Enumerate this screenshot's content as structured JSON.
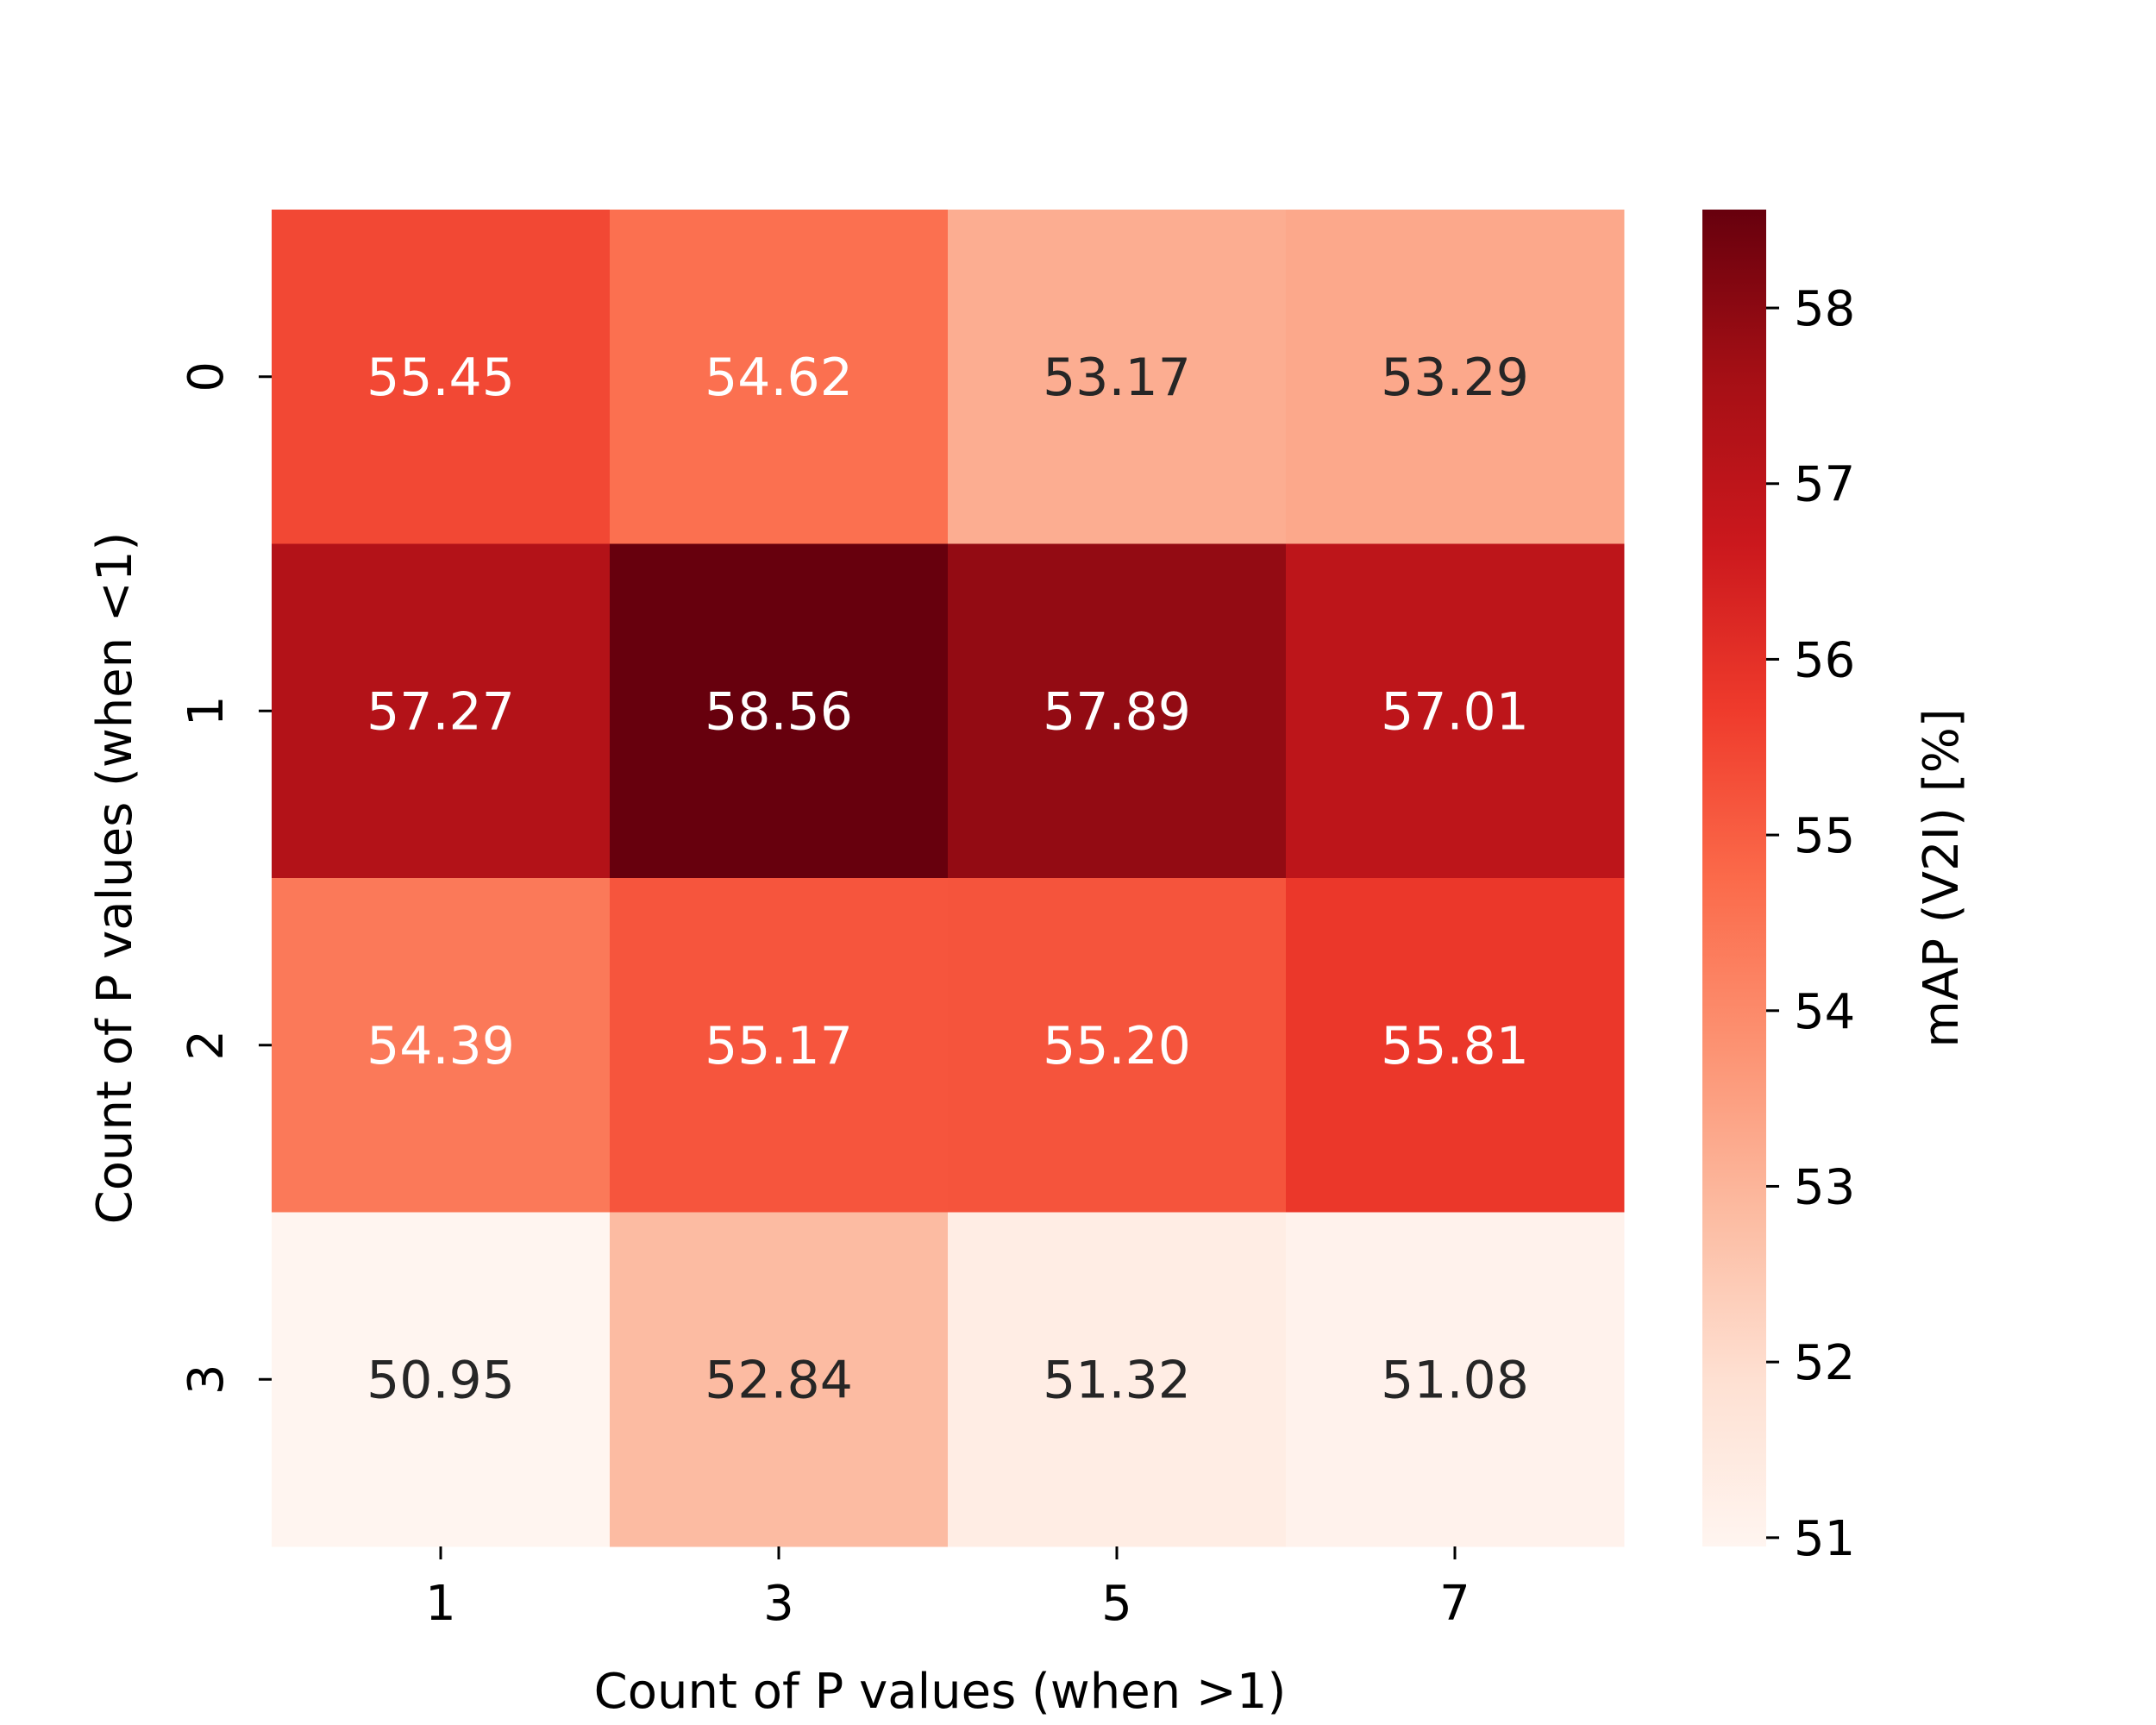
{
  "chart_data": {
    "type": "heatmap",
    "title": "",
    "xlabel": "Count of P values (when >1)",
    "ylabel": "Count of P values (when <1)",
    "x_categories": [
      "1",
      "3",
      "5",
      "7"
    ],
    "y_categories": [
      "0",
      "1",
      "2",
      "3"
    ],
    "values": [
      [
        55.45,
        54.62,
        53.17,
        53.29
      ],
      [
        57.27,
        58.56,
        57.89,
        57.01
      ],
      [
        54.39,
        55.17,
        55.2,
        55.81
      ],
      [
        50.95,
        52.84,
        51.32,
        51.08
      ]
    ],
    "cell_labels": [
      [
        "55.45",
        "54.62",
        "53.17",
        "53.29"
      ],
      [
        "57.27",
        "58.56",
        "57.89",
        "57.01"
      ],
      [
        "54.39",
        "55.17",
        "55.20",
        "55.81"
      ],
      [
        "50.95",
        "52.84",
        "51.32",
        "51.08"
      ]
    ],
    "colormap": "Reds",
    "colorbar": {
      "label": "mAP (V2I) [%]",
      "range": [
        50.95,
        58.56
      ],
      "ticks": [
        "51",
        "52",
        "53",
        "54",
        "55",
        "56",
        "57",
        "58"
      ]
    },
    "colors": {
      "annotation_light": "#ffffff",
      "annotation_dark": "#262626"
    }
  }
}
